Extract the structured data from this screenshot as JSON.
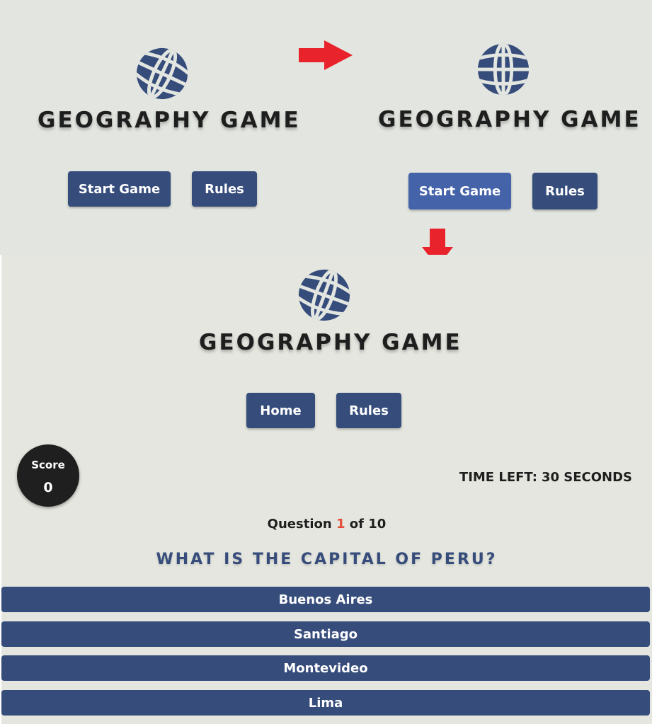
{
  "app": {
    "title": "GEOGRAPHY GAME",
    "logo_icon": "globe-icon",
    "brand_color": "#364c7b",
    "hover_color": "#4463a9",
    "accent_color": "#e44d3a",
    "arrow_color": "#e8232b"
  },
  "screens": {
    "home": {
      "buttons": {
        "start": "Start Game",
        "rules": "Rules"
      }
    },
    "home_hover": {
      "buttons": {
        "start": "Start Game",
        "rules": "Rules"
      }
    },
    "game": {
      "buttons": {
        "home": "Home",
        "rules": "Rules"
      },
      "score": {
        "label": "Score",
        "value": "0"
      },
      "timer": {
        "label": "TIME LEFT:",
        "value": "30 SECONDS"
      },
      "progress": {
        "prefix": "Question",
        "current": "1",
        "separator": "of",
        "total": "10"
      },
      "question": "WHAT IS THE CAPITAL OF PERU?",
      "answers": [
        "Buenos Aires",
        "Santiago",
        "Montevideo",
        "Lima"
      ]
    }
  }
}
